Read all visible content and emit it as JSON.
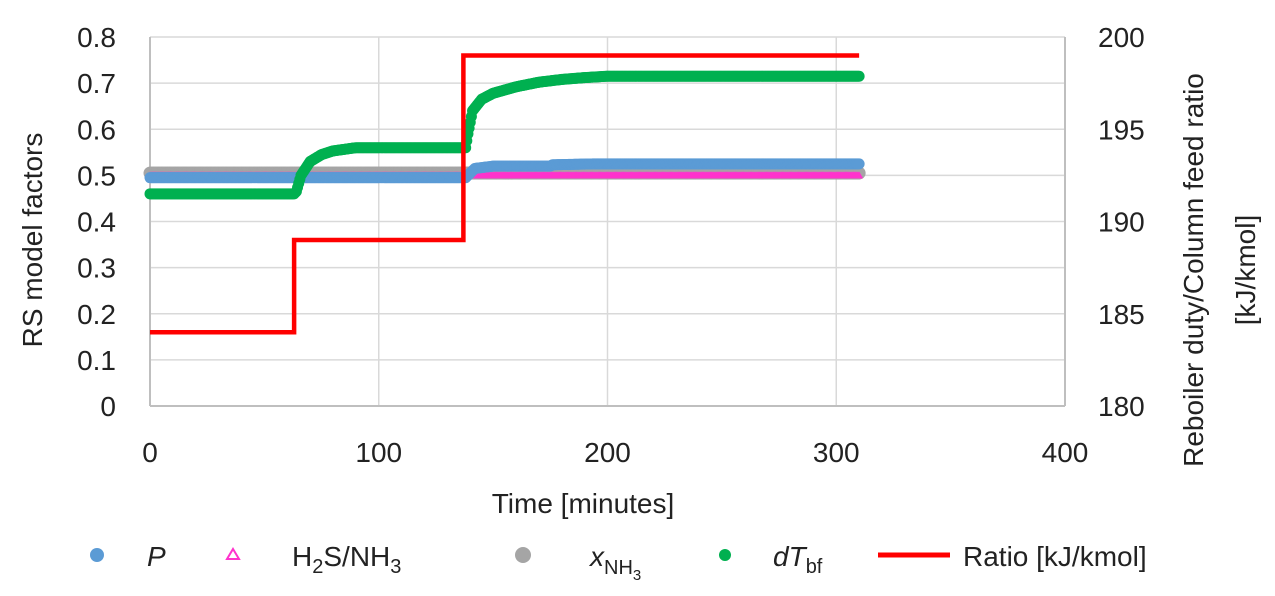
{
  "chart_data": {
    "type": "line",
    "xlabel": "Time [minutes]",
    "ylabel": "RS model factors",
    "y2label": [
      "Reboiler duty/Column feed ratio",
      "[kJ/kmol]"
    ],
    "xlim": [
      0,
      400
    ],
    "xticks": [
      "0",
      "100",
      "200",
      "300",
      "400"
    ],
    "ylim": [
      0,
      0.8
    ],
    "yticks": [
      "0",
      "0.1",
      "0.2",
      "0.3",
      "0.4",
      "0.5",
      "0.6",
      "0.7",
      "0.8"
    ],
    "y2lim": [
      180,
      200
    ],
    "y2ticks": [
      "180",
      "185",
      "190",
      "195",
      "200"
    ],
    "grid": true,
    "legend_position": "bottom",
    "legend": [
      {
        "key": "P",
        "text": "P"
      },
      {
        "key": "ratio_h2s_nh3",
        "text": "H2S/NH3"
      },
      {
        "key": "x_nh3",
        "text": "xNH3"
      },
      {
        "key": "dtbf",
        "text": "dTbf"
      },
      {
        "key": "ratio",
        "text": "Ratio [kJ/kmol]"
      }
    ],
    "series": [
      {
        "key": "P",
        "marker": "circle",
        "color": "#5b9bd5",
        "axis": "left",
        "x": [
          0,
          64,
          138,
          142,
          150,
          175,
          176,
          195,
          310
        ],
        "y": [
          0.495,
          0.495,
          0.495,
          0.515,
          0.52,
          0.52,
          0.523,
          0.525,
          0.525
        ]
      },
      {
        "key": "ratio_h2s_nh3",
        "marker": "triangle",
        "color": "#ff33cc",
        "axis": "left",
        "x": [
          0,
          310
        ],
        "y": [
          0.5,
          0.5
        ]
      },
      {
        "key": "x_nh3",
        "marker": "circle",
        "color": "#a5a5a5",
        "axis": "left",
        "x": [
          0,
          310
        ],
        "y": [
          0.505,
          0.505
        ]
      },
      {
        "key": "dtbf",
        "marker": "circle",
        "color": "#00b050",
        "axis": "left",
        "x": [
          0,
          63,
          64,
          66,
          70,
          75,
          80,
          90,
          138,
          139,
          141,
          145,
          150,
          160,
          170,
          180,
          190,
          200,
          310
        ],
        "y": [
          0.46,
          0.46,
          0.465,
          0.5,
          0.53,
          0.545,
          0.553,
          0.56,
          0.56,
          0.59,
          0.64,
          0.665,
          0.678,
          0.692,
          0.702,
          0.708,
          0.712,
          0.715,
          0.715
        ]
      },
      {
        "key": "ratio",
        "marker": "none",
        "color": "#ff0000",
        "axis": "right",
        "x": [
          0,
          63,
          63,
          137,
          137,
          310
        ],
        "y": [
          184,
          184,
          189,
          189,
          199,
          199
        ]
      }
    ]
  }
}
